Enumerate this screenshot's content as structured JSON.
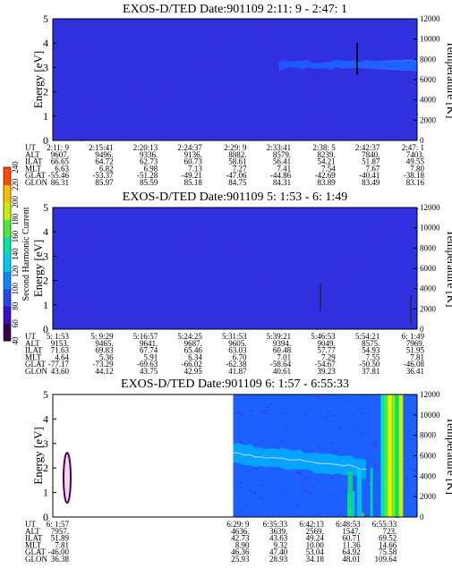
{
  "colorbar": {
    "title": "Second Harmonic Current",
    "ticks": [
      "40",
      "60",
      "80",
      "100",
      "120",
      "140",
      "160",
      "180",
      "200",
      "220",
      "240"
    ]
  },
  "row_labels": [
    "UT",
    "ALT",
    "ILAT",
    "MLT",
    "GLAT",
    "GLON"
  ],
  "chart_data": [
    {
      "type": "heatmap",
      "title": "EXOS-D/TED   Date:901109  2:11: 9 - 2:47: 1",
      "ylabel": "Energy [eV]",
      "ylabel_right": "Temperature [K]",
      "ylim": [
        0,
        5
      ],
      "ylim_right": [
        0,
        12000
      ],
      "yticks": [
        "0",
        "1",
        "2",
        "3",
        "4",
        "5"
      ],
      "yticks_right": [
        "0",
        "2000",
        "4000",
        "6000",
        "8000",
        "10000",
        "12000"
      ],
      "background_level": 80,
      "features": [
        {
          "t_start": 0.665,
          "t_end": 1.0,
          "e_low": 2.85,
          "e_high": 3.35,
          "level": 115,
          "shape": "wedge"
        },
        {
          "t_start": 0.62,
          "t_end": 1.0,
          "e_low": 2.95,
          "e_high": 3.25,
          "level": 100,
          "shape": "band"
        }
      ],
      "orbit_table": {
        "UT": [
          "2:11: 9",
          "2:15:41",
          "2:20:13",
          "2:24:37",
          "2:29: 9",
          "2:33:41",
          "2:38: 5",
          "2:42:37",
          "2:47: 1"
        ],
        "ALT": [
          "9607.",
          "9496.",
          "9336.",
          "9136.",
          "8882.",
          "8579.",
          "8239.",
          "7840.",
          "7403."
        ],
        "ILAT": [
          "66.65",
          "64.72",
          "62.73",
          "60.73",
          "58.61",
          "56.41",
          "54.21",
          "51.87",
          "49.55"
        ],
        "MLT": [
          "6.63",
          "6.82",
          "6.98",
          "7.13",
          "7.27",
          "7.41",
          "7.54",
          "7.67",
          "7.80"
        ],
        "GLAT": [
          "-55.46",
          "-53.37",
          "-51.28",
          "-49.21",
          "-47.06",
          "-44.86",
          "-42.69",
          "-40.41",
          "-38.18"
        ],
        "GLON": [
          "86.31",
          "85.97",
          "85.59",
          "85.18",
          "84.75",
          "84.31",
          "83.89",
          "83.49",
          "83.16"
        ]
      }
    },
    {
      "type": "heatmap",
      "title": "EXOS-D/TED   Date:901109  5: 1:53 - 6: 1:49",
      "ylabel": "Energy [eV]",
      "ylabel_right": "Temperature [K]",
      "ylim": [
        0,
        5
      ],
      "ylim_right": [
        0,
        12000
      ],
      "yticks": [
        "0",
        "1",
        "2",
        "3",
        "4",
        "5"
      ],
      "yticks_right": [
        "0",
        "2000",
        "4000",
        "6000",
        "8000",
        "10000",
        "12000"
      ],
      "background_level": 80,
      "features": [],
      "orbit_table": {
        "UT": [
          "5: 1:53",
          "5: 9:29",
          "5:16:57",
          "5:24:25",
          "5:31:53",
          "5:39:21",
          "5:46:53",
          "5:54:21",
          "6: 1:49"
        ],
        "ALT": [
          "9153.",
          "9465.",
          "9641.",
          "9687.",
          "9605.",
          "9394.",
          "9049.",
          "8575.",
          "7969."
        ],
        "ILAT": [
          "71.63",
          "69.83",
          "67.74",
          "65.46",
          "63.03",
          "60.48",
          "57.77",
          "54.93",
          "51.95"
        ],
        "MLT": [
          "4.64",
          "5.36",
          "5.91",
          "6.34",
          "6.70",
          "7.01",
          "7.29",
          "7.55",
          "7.81"
        ],
        "GLAT": [
          "-77.17",
          "-73.29",
          "-69.63",
          "-66.02",
          "-62.38",
          "-58.64",
          "-54.67",
          "-50.50",
          "-46.08"
        ],
        "GLON": [
          "43.60",
          "44.12",
          "43.75",
          "42.95",
          "41.87",
          "40.61",
          "39.23",
          "37.81",
          "36.41"
        ]
      }
    },
    {
      "type": "heatmap",
      "title": "EXOS-D/TED   Date:901109  6: 1:57 - 6:55:33",
      "ylabel": "Energy [eV]",
      "ylabel_right": "Temperature [K]",
      "ylim": [
        0,
        5
      ],
      "ylim_right": [
        0,
        12000
      ],
      "yticks": [
        "0",
        "1",
        "2",
        "3",
        "4",
        "5"
      ],
      "yticks_right": [
        "0",
        "2000",
        "4000",
        "6000",
        "8000",
        "10000",
        "12000"
      ],
      "background_level": 100,
      "data_gap": [
        0.0,
        0.495
      ],
      "features": [
        {
          "t_start": 0.495,
          "t_end": 0.86,
          "e_low": 2.2,
          "e_high": 3.0,
          "level": 120,
          "shape": "band"
        },
        {
          "t_start": 0.8,
          "t_end": 0.95,
          "e_low": 0.0,
          "e_high": 2.5,
          "level": 160,
          "shape": "burst"
        },
        {
          "t_start": 0.9,
          "t_end": 0.96,
          "e_low": 0.0,
          "e_high": 5.0,
          "level": 220,
          "shape": "column"
        }
      ],
      "orbit_table": {
        "UT": [
          "6: 1:57",
          "6:29: 9",
          "6:35:33",
          "6:42:13",
          "6:48:53",
          "6:55:33"
        ],
        "ALT": [
          "7957.",
          "4636.",
          "3639.",
          "2569.",
          "1547.",
          "723."
        ],
        "ILAT": [
          "51.89",
          "42.73",
          "43.63",
          "49.24",
          "60.71",
          "69.52"
        ],
        "MLT": [
          "7.81",
          "8.90",
          "9.32",
          "10.00",
          "11.36",
          "14.66"
        ],
        "GLAT": [
          "-46.00",
          "46.36",
          "47.40",
          "53.04",
          "64.92",
          "75.58"
        ],
        "GLON": [
          "36.38",
          "25.93",
          "28.93",
          "34.18",
          "48.01",
          "109.64"
        ]
      }
    }
  ]
}
